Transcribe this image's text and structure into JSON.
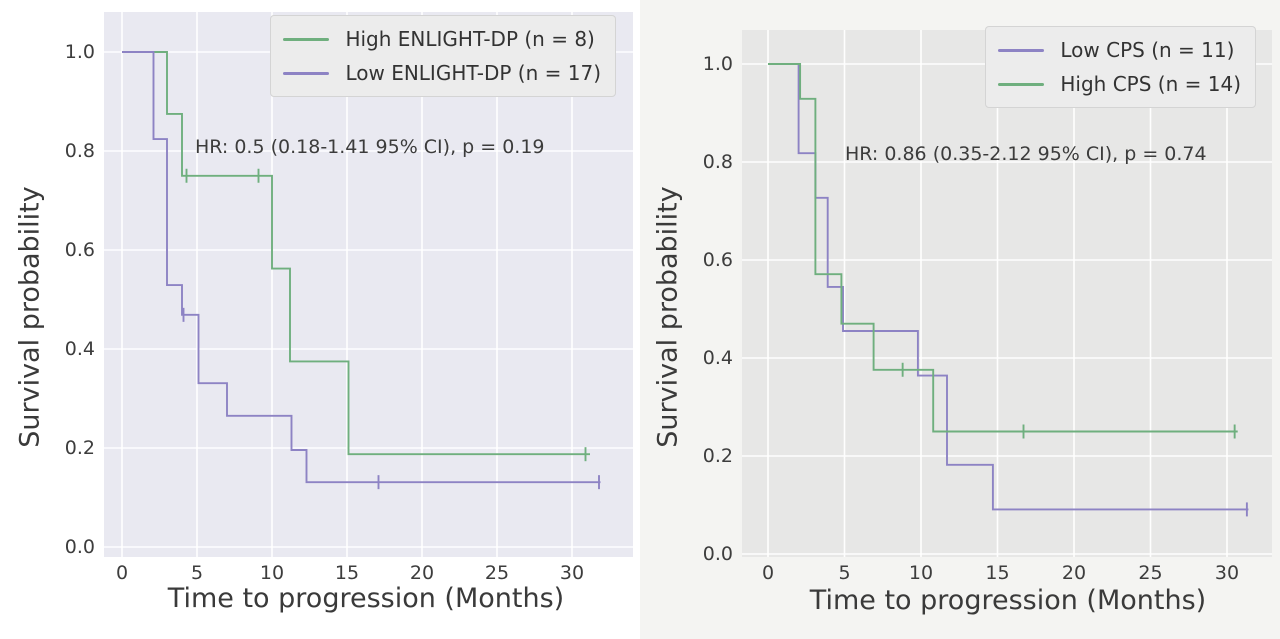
{
  "chart_data": [
    {
      "type": "line",
      "subtype": "kaplan-meier-step",
      "panel": "left",
      "xlabel": "Time to progression (Months)",
      "ylabel": "Survival probability",
      "annotation": "HR: 0.5 (0.18-1.41 95% CI), p = 0.19",
      "xticks": [
        0,
        5,
        10,
        15,
        20,
        25,
        30
      ],
      "yticks": [
        0.0,
        0.2,
        0.4,
        0.6,
        0.8,
        1.0
      ],
      "xlim": [
        -1.2,
        34
      ],
      "ylim": [
        -0.02,
        1.08
      ],
      "grid": true,
      "legend_position": "upper right",
      "series": [
        {
          "name": "High ENLIGHT-DP (n = 8)",
          "color": "#6faf7e",
          "points": [
            [
              0,
              1.0
            ],
            [
              3.0,
              1.0
            ],
            [
              3.0,
              0.875
            ],
            [
              4.0,
              0.875
            ],
            [
              4.0,
              0.75
            ],
            [
              10.0,
              0.75
            ],
            [
              10.0,
              0.5625
            ],
            [
              11.2,
              0.5625
            ],
            [
              11.2,
              0.375
            ],
            [
              15.1,
              0.375
            ],
            [
              15.1,
              0.1875
            ],
            [
              31.2,
              0.1875
            ]
          ],
          "censors": [
            [
              4.3,
              0.75
            ],
            [
              9.1,
              0.75
            ],
            [
              30.9,
              0.1875
            ]
          ]
        },
        {
          "name": "Low ENLIGHT-DP (n = 17)",
          "color": "#8d83c4",
          "points": [
            [
              0,
              1.0
            ],
            [
              2.1,
              1.0
            ],
            [
              2.1,
              0.824
            ],
            [
              3.0,
              0.824
            ],
            [
              3.0,
              0.529
            ],
            [
              4.0,
              0.529
            ],
            [
              4.0,
              0.469
            ],
            [
              5.1,
              0.469
            ],
            [
              5.1,
              0.331
            ],
            [
              7.0,
              0.331
            ],
            [
              7.0,
              0.265
            ],
            [
              11.3,
              0.265
            ],
            [
              11.3,
              0.196
            ],
            [
              12.3,
              0.196
            ],
            [
              12.3,
              0.131
            ],
            [
              31.9,
              0.131
            ]
          ],
          "censors": [
            [
              4.1,
              0.469
            ],
            [
              17.1,
              0.131
            ],
            [
              31.8,
              0.131
            ]
          ]
        }
      ]
    },
    {
      "type": "line",
      "subtype": "kaplan-meier-step",
      "panel": "right",
      "xlabel": "Time to progression (Months)",
      "ylabel": "Survival probability",
      "annotation": "HR: 0.86 (0.35-2.12 95% CI), p = 0.74",
      "xticks": [
        0,
        5,
        10,
        15,
        20,
        25,
        30
      ],
      "yticks": [
        0.0,
        0.2,
        0.4,
        0.6,
        0.8,
        1.0
      ],
      "xlim": [
        -1.7,
        33
      ],
      "ylim": [
        -0.06,
        1.07
      ],
      "grid": true,
      "legend_position": "upper right",
      "series": [
        {
          "name": "Low CPS (n = 11)",
          "color": "#8d83c4",
          "points": [
            [
              0,
              1.0
            ],
            [
              2.0,
              1.0
            ],
            [
              2.0,
              0.818
            ],
            [
              3.1,
              0.818
            ],
            [
              3.1,
              0.727
            ],
            [
              3.9,
              0.727
            ],
            [
              3.9,
              0.545
            ],
            [
              4.9,
              0.545
            ],
            [
              4.9,
              0.455
            ],
            [
              9.8,
              0.455
            ],
            [
              9.8,
              0.364
            ],
            [
              11.7,
              0.364
            ],
            [
              11.7,
              0.182
            ],
            [
              14.7,
              0.182
            ],
            [
              14.7,
              0.091
            ],
            [
              31.4,
              0.091
            ]
          ],
          "censors": [
            [
              31.3,
              0.091
            ]
          ]
        },
        {
          "name": "High CPS (n = 14)",
          "color": "#6faf7e",
          "points": [
            [
              0,
              1.0
            ],
            [
              2.1,
              1.0
            ],
            [
              2.1,
              0.929
            ],
            [
              3.1,
              0.929
            ],
            [
              3.1,
              0.571
            ],
            [
              4.8,
              0.571
            ],
            [
              4.8,
              0.47
            ],
            [
              6.9,
              0.47
            ],
            [
              6.9,
              0.376
            ],
            [
              10.8,
              0.376
            ],
            [
              10.8,
              0.25
            ],
            [
              30.7,
              0.25
            ]
          ],
          "censors": [
            [
              8.8,
              0.376
            ],
            [
              16.7,
              0.25
            ],
            [
              30.5,
              0.25
            ]
          ]
        }
      ]
    }
  ]
}
